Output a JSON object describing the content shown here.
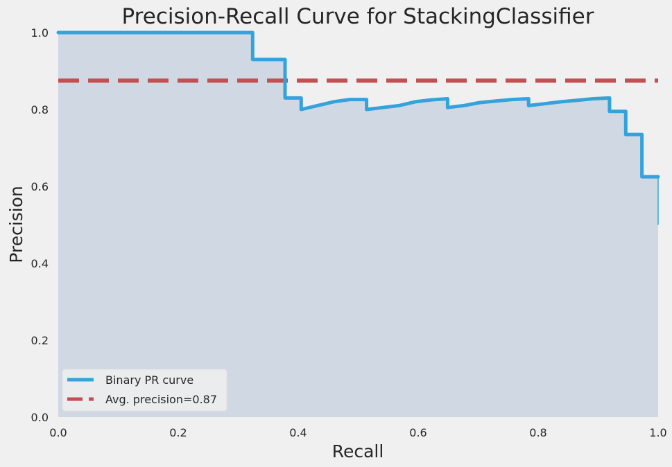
{
  "chart_data": {
    "type": "line",
    "title": "Precision-Recall Curve for StackingClassifier",
    "xlabel": "Recall",
    "ylabel": "Precision",
    "xlim": [
      0.0,
      1.0
    ],
    "ylim": [
      0.0,
      1.0
    ],
    "grid": false,
    "legend_position": "lower-left",
    "x_ticks": [
      "0.0",
      "0.2",
      "0.4",
      "0.6",
      "0.8",
      "1.0"
    ],
    "y_ticks": [
      "0.0",
      "0.2",
      "0.4",
      "0.6",
      "0.8",
      "1.0"
    ],
    "series": [
      {
        "name": "Binary PR curve",
        "color": "#34a2db",
        "style": "step",
        "recall": [
          0.0,
          0.324,
          0.324,
          0.378,
          0.378,
          0.405,
          0.405,
          0.432,
          0.459,
          0.486,
          0.514,
          0.514,
          0.541,
          0.568,
          0.595,
          0.622,
          0.649,
          0.649,
          0.676,
          0.703,
          0.73,
          0.757,
          0.784,
          0.784,
          0.811,
          0.838,
          0.865,
          0.892,
          0.919,
          0.919,
          0.946,
          0.946,
          0.973,
          0.973,
          1.0,
          1.0
        ],
        "precision": [
          1.0,
          1.0,
          0.93,
          0.93,
          0.83,
          0.83,
          0.8,
          0.81,
          0.82,
          0.826,
          0.826,
          0.8,
          0.805,
          0.81,
          0.82,
          0.825,
          0.828,
          0.805,
          0.81,
          0.818,
          0.822,
          0.826,
          0.828,
          0.81,
          0.815,
          0.82,
          0.824,
          0.828,
          0.83,
          0.795,
          0.795,
          0.735,
          0.735,
          0.625,
          0.625,
          0.5
        ]
      }
    ],
    "reference_lines": [
      {
        "name": "Avg. precision=0.87",
        "y": 0.875,
        "color": "#c44e52",
        "style": "dashed"
      }
    ],
    "fill": {
      "under_series": "Binary PR curve",
      "color": "#d0d8e4"
    }
  }
}
